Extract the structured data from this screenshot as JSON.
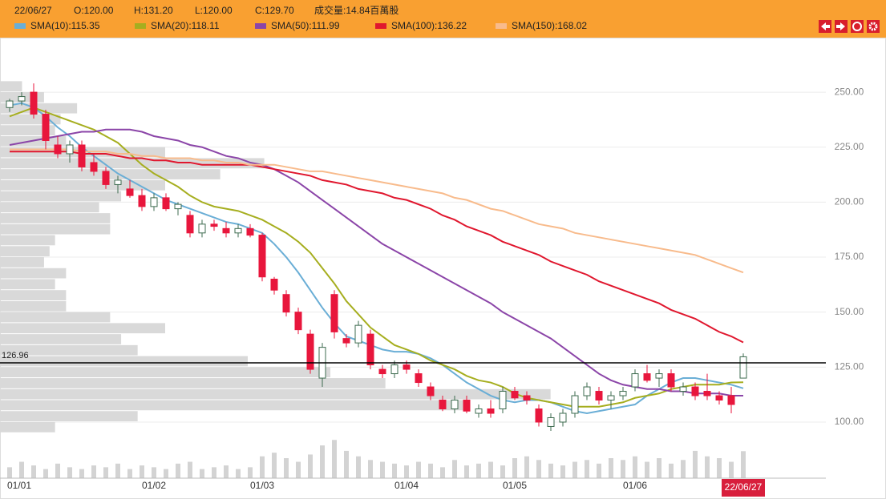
{
  "chart_data": {
    "type": "candlestick",
    "info": [
      "22/06/27",
      "O:120.00",
      "H:131.20",
      "L:120.00",
      "C:129.70",
      "成交量:14.84百萬股"
    ],
    "categories": [
      "01/01",
      null,
      null,
      null,
      null,
      null,
      null,
      null,
      null,
      null,
      null,
      null,
      "01/02",
      null,
      null,
      null,
      null,
      null,
      null,
      null,
      null,
      "01/03",
      null,
      null,
      null,
      null,
      null,
      null,
      null,
      null,
      null,
      null,
      null,
      "01/04",
      null,
      null,
      null,
      null,
      null,
      null,
      null,
      null,
      "01/05",
      null,
      null,
      null,
      null,
      null,
      null,
      null,
      null,
      null,
      "01/06",
      null,
      null,
      null,
      null,
      null,
      null,
      null,
      null,
      "22/06/27"
    ],
    "open": [
      243,
      246,
      250,
      240,
      226,
      222,
      226,
      218,
      214,
      208,
      206,
      203,
      198,
      202,
      197,
      194,
      186,
      190,
      188,
      186,
      188,
      185,
      165,
      158,
      150,
      140,
      120,
      158,
      138,
      136,
      140,
      124,
      122,
      126,
      122,
      116,
      110,
      106,
      110,
      104,
      106,
      106,
      114,
      112,
      106,
      98,
      100,
      104,
      112,
      114,
      110,
      112,
      116,
      122,
      120,
      122,
      114,
      116,
      114,
      112,
      112,
      120
    ],
    "high": [
      247,
      250,
      254,
      242,
      230,
      228,
      228,
      222,
      216,
      212,
      210,
      206,
      204,
      204,
      200,
      196,
      192,
      192,
      191,
      190,
      190,
      186,
      166,
      160,
      152,
      142,
      136,
      160,
      140,
      146,
      142,
      126,
      128,
      128,
      124,
      118,
      112,
      112,
      112,
      108,
      110,
      116,
      116,
      114,
      108,
      104,
      106,
      114,
      118,
      116,
      114,
      116,
      124,
      126,
      124,
      124,
      118,
      118,
      122,
      114,
      116,
      131.2
    ],
    "low": [
      241,
      244,
      238,
      224,
      220,
      218,
      214,
      212,
      206,
      204,
      202,
      196,
      196,
      196,
      194,
      184,
      184,
      187,
      184,
      184,
      184,
      164,
      158,
      148,
      140,
      122,
      116,
      138,
      134,
      134,
      124,
      120,
      120,
      122,
      116,
      110,
      105,
      104,
      104,
      102,
      102,
      104,
      110,
      108,
      98,
      96,
      98,
      102,
      110,
      108,
      106,
      110,
      114,
      118,
      116,
      114,
      112,
      110,
      110,
      108,
      104,
      120
    ],
    "close": [
      246,
      248,
      240,
      228,
      222,
      226,
      216,
      214,
      208,
      210,
      203,
      198,
      202,
      197,
      199,
      186,
      190,
      189,
      186,
      188,
      185,
      166,
      160,
      150,
      142,
      124,
      134,
      141,
      136,
      144,
      126,
      122,
      126,
      124,
      118,
      112,
      106,
      110,
      105,
      106,
      104,
      114,
      111,
      110,
      100,
      102,
      104,
      112,
      116,
      110,
      112,
      114,
      122,
      119,
      122,
      116,
      116,
      112,
      112,
      110,
      108,
      129.7
    ],
    "up_color": "#ffffff",
    "down_color": "#e8163c",
    "series": [
      {
        "name": "SMA(10):115.35",
        "color": "#6aaed6",
        "values": [
          244,
          245,
          243,
          239,
          234,
          230,
          225,
          221,
          217,
          213,
          210,
          207,
          204,
          201,
          199,
          197,
          195,
          193,
          191,
          190,
          188,
          186,
          181,
          175,
          168,
          160,
          152,
          145,
          139,
          137,
          135,
          133,
          132,
          132,
          131,
          129,
          126,
          122,
          118,
          115,
          112,
          110,
          109,
          110,
          110,
          109,
          107,
          105,
          104,
          105,
          106,
          107,
          108,
          112,
          115,
          118,
          120,
          120,
          119,
          118,
          117,
          115.35
        ]
      },
      {
        "name": "SMA(20):118.11",
        "color": "#a6ae1f",
        "values": [
          239,
          241,
          243,
          241,
          239,
          237,
          235,
          233,
          230,
          227,
          222,
          217,
          213,
          210,
          207,
          203,
          200,
          198,
          197,
          196,
          194,
          192,
          189,
          186,
          182,
          177,
          170,
          163,
          155,
          149,
          143,
          139,
          135,
          133,
          131,
          128,
          126,
          124,
          121,
          119,
          118,
          116,
          113,
          111,
          110,
          109,
          108,
          107,
          107,
          107,
          108,
          109,
          111,
          112,
          113,
          115,
          116,
          117,
          117,
          117,
          118,
          118.11
        ]
      },
      {
        "name": "SMA(50):111.99",
        "color": "#8b45a8",
        "values": [
          226,
          227,
          228,
          229,
          230,
          231,
          232,
          232,
          233,
          233,
          233,
          232,
          230,
          229,
          228,
          226,
          225,
          223,
          221,
          220,
          218,
          217,
          215,
          212,
          209,
          205,
          201,
          197,
          193,
          189,
          185,
          181,
          178,
          175,
          172,
          169,
          166,
          163,
          160,
          157,
          154,
          150,
          147,
          144,
          141,
          138,
          134,
          130,
          126,
          122,
          119,
          117,
          116,
          115,
          115,
          114,
          114,
          113,
          113,
          113,
          112,
          111.99
        ]
      },
      {
        "name": "SMA(100):136.22",
        "color": "#e0172e",
        "values": [
          223,
          223,
          223,
          223,
          223,
          223,
          222,
          222,
          222,
          221,
          220,
          220,
          219,
          219,
          218,
          218,
          217,
          217,
          217,
          217,
          217,
          216,
          215,
          214,
          213,
          212,
          210,
          209,
          208,
          206,
          205,
          204,
          202,
          201,
          199,
          197,
          194,
          192,
          189,
          187,
          185,
          182,
          180,
          178,
          176,
          173,
          171,
          169,
          167,
          164,
          162,
          160,
          158,
          156,
          154,
          151,
          149,
          147,
          144,
          141,
          139,
          136.22
        ]
      },
      {
        "name": "SMA(150):168.02",
        "color": "#f8bb8c",
        "values": [
          224,
          224,
          224,
          224,
          224,
          224,
          223,
          223,
          223,
          222,
          222,
          221,
          221,
          220,
          220,
          220,
          219,
          219,
          218,
          218,
          217,
          217,
          217,
          216,
          215,
          214,
          214,
          213,
          212,
          211,
          210,
          209,
          208,
          207,
          206,
          205,
          204,
          202,
          201,
          199,
          197,
          196,
          194,
          192,
          190,
          189,
          188,
          186,
          185,
          184,
          183,
          182,
          181,
          180,
          179,
          178,
          177,
          176,
          174,
          172,
          170,
          168.02
        ]
      }
    ],
    "volume": {
      "color": "#d3d3d3",
      "ylim": [
        0,
        22
      ],
      "values": [
        6,
        9,
        7,
        5,
        8,
        6,
        5,
        7,
        6,
        8,
        5,
        7,
        6,
        5,
        8,
        9,
        5,
        6,
        7,
        5,
        6,
        12,
        14,
        11,
        9,
        13,
        18,
        21,
        15,
        12,
        10,
        9,
        8,
        7,
        9,
        8,
        6,
        10,
        7,
        8,
        9,
        7,
        11,
        12,
        10,
        8,
        7,
        9,
        10,
        8,
        11,
        10,
        12,
        9,
        11,
        8,
        10,
        15,
        12,
        11,
        9,
        14.84
      ]
    },
    "volume_profile": {
      "color": "#d9d9d9",
      "xlim": [
        0,
        150
      ],
      "bins": [
        95,
        100,
        105,
        110,
        115,
        120,
        125,
        130,
        135,
        140,
        145,
        150,
        155,
        160,
        165,
        170,
        175,
        180,
        185,
        190,
        195,
        200,
        205,
        210,
        215,
        220,
        225,
        230,
        235,
        240,
        245,
        250,
        255
      ],
      "counts": [
        10,
        25,
        85,
        100,
        70,
        60,
        45,
        25,
        22,
        30,
        20,
        12,
        12,
        10,
        12,
        8,
        9,
        10,
        20,
        20,
        18,
        22,
        30,
        40,
        48,
        30,
        12,
        10,
        11,
        14,
        8,
        4
      ]
    },
    "reference_line": 126.96,
    "ylim": [
      74.5,
      273.7
    ],
    "yticks": [
      {
        "value": 100,
        "label": "100.00"
      },
      {
        "value": 125,
        "label": "125.00"
      },
      {
        "value": 150,
        "label": "150.00"
      },
      {
        "value": 175,
        "label": "175.00"
      },
      {
        "value": 200,
        "label": "200.00"
      },
      {
        "value": 225,
        "label": "225.00"
      },
      {
        "value": 250,
        "label": "250.00"
      }
    ],
    "grid": true
  }
}
